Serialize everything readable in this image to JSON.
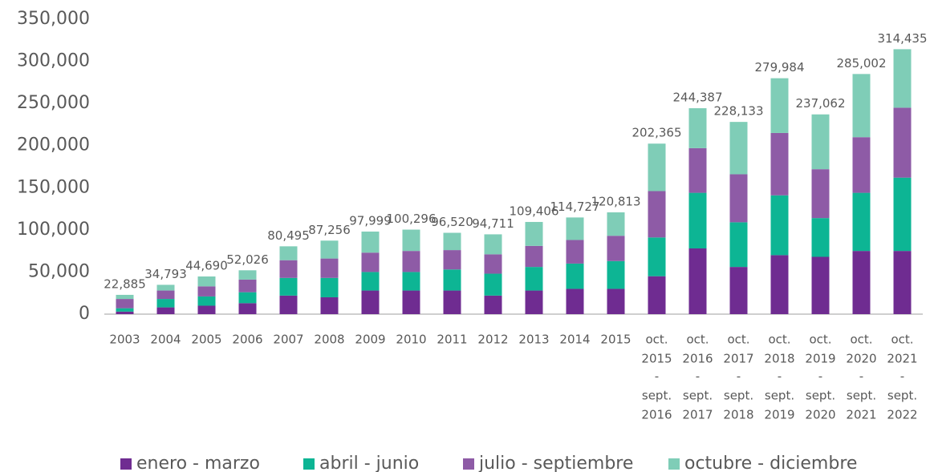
{
  "chart_data": {
    "type": "stacked-bar",
    "categories": [
      "2003",
      "2004",
      "2005",
      "2006",
      "2007",
      "2008",
      "2009",
      "2010",
      "2011",
      "2012",
      "2013",
      "2014",
      "2015",
      [
        "oct.",
        "2015",
        "-",
        "sept.",
        "2016"
      ],
      [
        "oct.",
        "2016",
        "-",
        "sept.",
        "2017"
      ],
      [
        "oct.",
        "2017",
        "-",
        "sept.",
        "2018"
      ],
      [
        "oct.",
        "2018",
        "-",
        "sept.",
        "2019"
      ],
      [
        "oct.",
        "2019",
        "-",
        "sept.",
        "2020"
      ],
      [
        "oct.",
        "2020",
        "-",
        "sept.",
        "2021"
      ],
      [
        "oct.",
        "2021",
        "-",
        "sept.",
        "2022"
      ]
    ],
    "series": [
      {
        "name": "enero - marzo",
        "color": "#6f2c91",
        "values": [
          3000,
          8000,
          10000,
          13000,
          22000,
          20000,
          28000,
          28000,
          28000,
          22000,
          28000,
          30000,
          30000,
          45000,
          78000,
          56000,
          70000,
          68000,
          75000,
          75000
        ]
      },
      {
        "name": "abril - junio",
        "color": "#0db594",
        "values": [
          4000,
          10000,
          11000,
          13000,
          21000,
          23000,
          22000,
          22000,
          25000,
          26000,
          28000,
          30000,
          33000,
          46000,
          66000,
          53000,
          71000,
          46000,
          69000,
          87000
        ]
      },
      {
        "name": "julio - septiembre",
        "color": "#8e5ba6",
        "values": [
          11000,
          10000,
          12000,
          15000,
          21000,
          23000,
          23000,
          25000,
          23000,
          23000,
          25000,
          28000,
          30000,
          55000,
          53000,
          57000,
          74000,
          58000,
          66000,
          83000
        ]
      },
      {
        "name": "octubre - diciembre",
        "color": "#7fcdb7",
        "values": [
          4885,
          6793,
          11690,
          11026,
          16495,
          21256,
          24999,
          25296,
          20520,
          23711,
          28406,
          26727,
          27813,
          56365,
          47387,
          62133,
          64984,
          65062,
          75002,
          69435
        ]
      }
    ],
    "totals": [
      22885,
      34793,
      44690,
      52026,
      80495,
      87256,
      97999,
      100296,
      96520,
      94711,
      109406,
      114727,
      120813,
      202365,
      244387,
      228133,
      279984,
      237062,
      285002,
      314435
    ],
    "total_labels": [
      "22,885",
      "34,793",
      "44,690",
      "52,026",
      "80,495",
      "87,256",
      "97,999",
      "100,296",
      "96,520",
      "94,711",
      "109,406",
      "114,727",
      "120,813",
      "202,365",
      "244,387",
      "228,133",
      "279,984",
      "237,062",
      "285,002",
      "314,435"
    ],
    "ylim": [
      0,
      350000
    ],
    "yticks": [
      0,
      {
        "value": 50000,
        "label": "50,000"
      },
      {
        "value": 100000,
        "label": "100,000"
      },
      {
        "value": 150000,
        "label": "150,000"
      },
      {
        "value": 200000,
        "label": "200,000"
      },
      {
        "value": 250000,
        "label": "250,000"
      },
      {
        "value": 300000,
        "label": "300,000"
      },
      {
        "value": 350000,
        "label": "350,000"
      }
    ],
    "grid": false,
    "legend": "bottom"
  }
}
